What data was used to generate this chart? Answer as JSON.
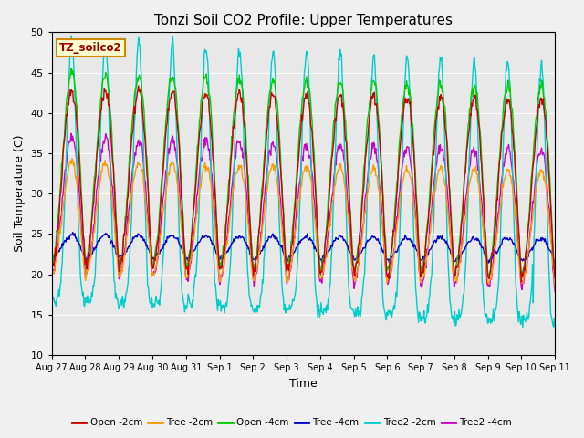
{
  "title": "Tonzi Soil CO2 Profile: Upper Temperatures",
  "xlabel": "Time",
  "ylabel": "Soil Temperature (C)",
  "ylim": [
    10,
    50
  ],
  "yticks": [
    10,
    15,
    20,
    25,
    30,
    35,
    40,
    45,
    50
  ],
  "fig_bg_color": "#f0f0f0",
  "plot_bg_color": "#e8e8e8",
  "label_box_text": "TZ_soilco2",
  "label_box_bg": "#ffffcc",
  "label_box_border": "#cc8800",
  "series": [
    {
      "label": "Open -2cm",
      "color": "#cc0000"
    },
    {
      "label": "Tree -2cm",
      "color": "#ff9900"
    },
    {
      "label": "Open -4cm",
      "color": "#00cc00"
    },
    {
      "label": "Tree -4cm",
      "color": "#0000cc"
    },
    {
      "label": "Tree2 -2cm",
      "color": "#00cccc"
    },
    {
      "label": "Tree2 -4cm",
      "color": "#cc00cc"
    }
  ],
  "n_days": 15,
  "ppd": 48,
  "tick_labels": [
    "Aug 27",
    "Aug 28",
    "Aug 29",
    "Aug 30",
    "Aug 31",
    "Sep 1",
    "Sep 2",
    "Sep 3",
    "Sep 4",
    "Sep 5",
    "Sep 6",
    "Sep 7",
    "Sep 8",
    "Sep 9",
    "Sep 10",
    "Sep 11"
  ]
}
